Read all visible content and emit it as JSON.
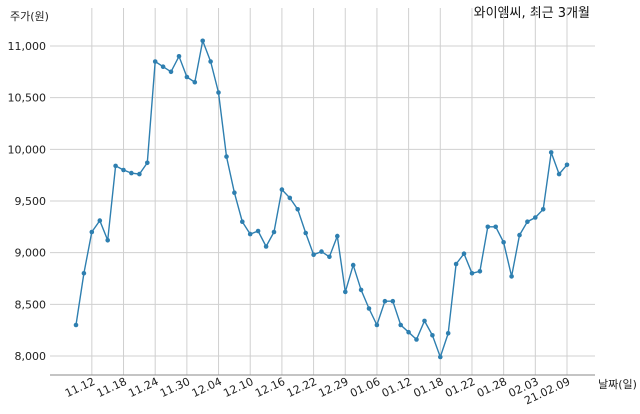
{
  "chart_data": {
    "type": "line",
    "title": "와이엠씨, 최근 3개월",
    "ylabel": "주가(원)",
    "xlabel": "날짜(일)",
    "ylim": [
      7800,
      11200
    ],
    "yticks": [
      8000,
      8500,
      9000,
      9500,
      10000,
      10500,
      11000
    ],
    "ytick_labels": [
      "8,000",
      "8,500",
      "9,000",
      "9,500",
      "10,000",
      "10,500",
      "11,000"
    ],
    "xtick_labels": [
      "11.12",
      "11.18",
      "11.24",
      "11.30",
      "12.04",
      "12.10",
      "12.16",
      "12.22",
      "12.29",
      "01.06",
      "01.12",
      "01.18",
      "01.22",
      "01.28",
      "02.03",
      "21.02.09"
    ],
    "xtick_index": [
      2,
      6,
      10,
      14,
      18,
      22,
      26,
      30,
      34,
      38,
      42,
      46,
      50,
      54,
      58,
      62
    ],
    "grid": true,
    "line_color": "#2e7fb0",
    "series": [
      {
        "values": [
          8300,
          8800,
          9200,
          9310,
          9120,
          9840,
          9800,
          9770,
          9760,
          9870,
          10850,
          10800,
          10750,
          10900,
          10700,
          10650,
          11050,
          10850,
          10550,
          9930,
          9580,
          9300,
          9180,
          9210,
          9060,
          9200,
          9610,
          9530,
          9420,
          9190,
          8980,
          9010,
          8960,
          9160,
          8620,
          8880,
          8640,
          8460,
          8300,
          8530,
          8530,
          8300,
          8230,
          8160,
          8340,
          8200,
          7990,
          8220,
          8890,
          8990,
          8800,
          8820,
          9250,
          9250,
          9100,
          8770,
          9170,
          9300,
          9340,
          9420,
          9970,
          9760,
          9850
        ]
      }
    ]
  }
}
